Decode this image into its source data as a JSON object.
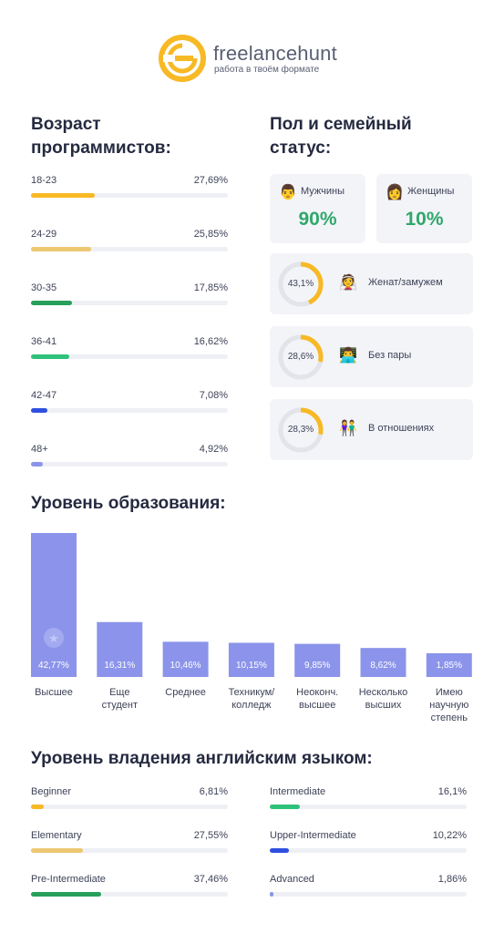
{
  "brand": {
    "name": "freelancehunt",
    "tagline": "работа в твоём формате",
    "accent": "#f7b924"
  },
  "age": {
    "title": "Возраст программистов:",
    "rows": [
      {
        "label": "18-23",
        "value_text": "27,69%",
        "value": 27.69,
        "color": "#f7b924"
      },
      {
        "label": "24-29",
        "value_text": "25,85%",
        "value": 25.85,
        "color": "#edc872"
      },
      {
        "label": "30-35",
        "value_text": "17,85%",
        "value": 17.85,
        "color": "#26a05a"
      },
      {
        "label": "36-41",
        "value_text": "16,62%",
        "value": 16.62,
        "color": "#2fc27a"
      },
      {
        "label": "42-47",
        "value_text": "7,08%",
        "value": 7.08,
        "color": "#2f4fe0"
      },
      {
        "label": "48+",
        "value_text": "4,92%",
        "value": 4.92,
        "color": "#8b94ea"
      }
    ]
  },
  "gender": {
    "title": "Пол и семейный статус:",
    "male": {
      "emoji": "👨",
      "label": "Мужчины",
      "value": "90%"
    },
    "female": {
      "emoji": "👩",
      "label": "Женщины",
      "value": "10%"
    },
    "status": [
      {
        "value_text": "43,1%",
        "value": 43.1,
        "emoji": "👰",
        "label": "Женат/замужем"
      },
      {
        "value_text": "28,6%",
        "value": 28.6,
        "emoji": "👨‍💻",
        "label": "Без пары"
      },
      {
        "value_text": "28,3%",
        "value": 28.3,
        "emoji": "👫",
        "label": "В отношениях"
      }
    ],
    "ring_color": "#f7b924",
    "ring_track": "#e3e4ea",
    "value_color": "#2fa86b"
  },
  "chart_data": {
    "type": "bar",
    "title": "Уровень образования:",
    "categories": [
      [
        "Высшее"
      ],
      [
        "Еще",
        "студент"
      ],
      [
        "Среднее"
      ],
      [
        "Техникум/",
        "колледж"
      ],
      [
        "Неоконч.",
        "высшее"
      ],
      [
        "Несколько",
        "высших"
      ],
      [
        "Имею",
        "научную",
        "степень"
      ]
    ],
    "values": [
      42.77,
      16.31,
      10.46,
      10.15,
      9.85,
      8.62,
      1.85
    ],
    "value_labels": [
      "42,77%",
      "16,31%",
      "10,46%",
      "10,15%",
      "9,85%",
      "8,62%",
      "1,85%"
    ],
    "color": "#8b94ea",
    "unit": "%"
  },
  "english": {
    "title": "Уровень владения английским языком:",
    "left": [
      {
        "label": "Beginner",
        "value_text": "6,81%",
        "value": 6.81,
        "color": "#f7b924"
      },
      {
        "label": "Elementary",
        "value_text": "27,55%",
        "value": 27.55,
        "color": "#edc872"
      },
      {
        "label": "Pre-Intermediate",
        "value_text": "37,46%",
        "value": 37.46,
        "color": "#26a05a"
      }
    ],
    "right": [
      {
        "label": "Intermediate",
        "value_text": "16,1%",
        "value": 16.1,
        "color": "#2fc27a"
      },
      {
        "label": "Upper-Intermediate",
        "value_text": "10,22%",
        "value": 10.22,
        "color": "#2f4fe0"
      },
      {
        "label": "Advanced",
        "value_text": "1,86%",
        "value": 1.86,
        "color": "#8b94ea"
      }
    ]
  }
}
